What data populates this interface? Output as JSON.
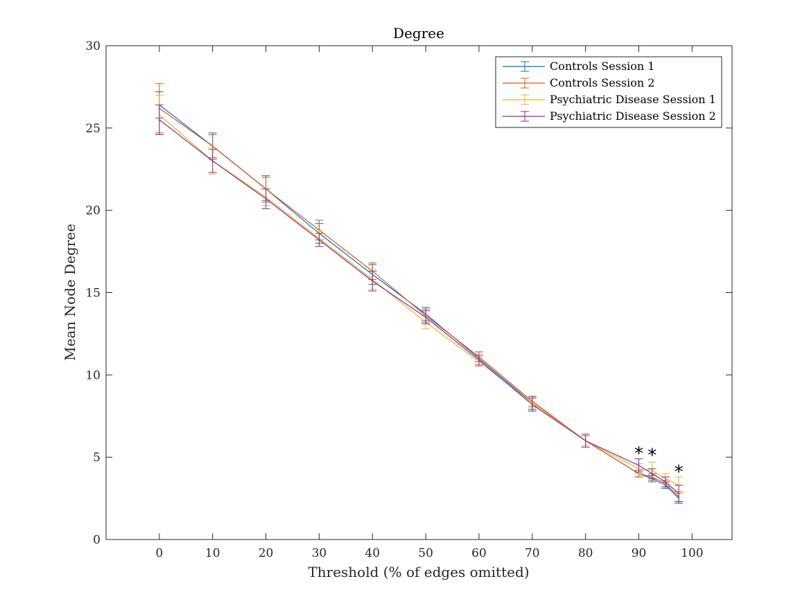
{
  "chart_data": {
    "type": "line",
    "title": "Degree",
    "xlabel": "Threshold (% of edges omitted)",
    "ylabel": "Mean Node Degree",
    "xlim": [
      -10,
      107.5
    ],
    "ylim": [
      0,
      30
    ],
    "xticks": [
      0,
      10,
      20,
      30,
      40,
      50,
      60,
      70,
      80,
      90,
      100
    ],
    "yticks": [
      0,
      5,
      10,
      15,
      20,
      25,
      30
    ],
    "x": [
      0,
      10,
      20,
      30,
      40,
      50,
      60,
      70,
      80,
      90,
      92.5,
      95,
      97.5
    ],
    "series": [
      {
        "name": "Controls Session 1",
        "color": "#0072BD",
        "values": [
          26.4,
          23.9,
          21.3,
          18.6,
          16.1,
          13.7,
          11.0,
          8.3,
          6.0,
          4.0,
          3.7,
          3.3,
          2.5
        ],
        "errors": [
          0.8,
          0.8,
          0.8,
          0.6,
          0.6,
          0.4,
          0.4,
          0.4,
          0.3,
          0.2,
          0.2,
          0.2,
          0.3
        ]
      },
      {
        "name": "Controls Session 2",
        "color": "#D95319",
        "values": [
          26.2,
          23.9,
          21.3,
          18.8,
          16.3,
          13.6,
          11.1,
          8.4,
          6.0,
          4.0,
          3.8,
          3.4,
          2.6
        ],
        "errors": [
          1.5,
          0.7,
          0.7,
          0.6,
          0.5,
          0.4,
          0.3,
          0.3,
          0.3,
          0.2,
          0.2,
          0.2,
          0.3
        ]
      },
      {
        "name": "Psychiatric Disease Session 1",
        "color": "#EDB120",
        "values": [
          25.8,
          23.0,
          20.8,
          18.3,
          15.8,
          13.2,
          10.8,
          8.3,
          6.0,
          4.3,
          4.2,
          3.7,
          3.3
        ],
        "errors": [
          1.2,
          0.8,
          0.5,
          0.5,
          0.6,
          0.4,
          0.3,
          0.3,
          0.3,
          0.3,
          0.5,
          0.3,
          0.5
        ]
      },
      {
        "name": "Psychiatric Disease Session 2",
        "color": "#7E2F8E",
        "values": [
          25.5,
          23.0,
          20.7,
          18.2,
          15.7,
          13.5,
          10.9,
          8.2,
          6.0,
          4.5,
          4.0,
          3.5,
          2.8
        ],
        "errors": [
          0.9,
          0.7,
          0.6,
          0.4,
          0.6,
          0.4,
          0.3,
          0.4,
          0.4,
          0.4,
          0.3,
          0.3,
          0.5
        ]
      }
    ],
    "annotations": [
      {
        "text": "*",
        "x": 90,
        "y": 5.4
      },
      {
        "text": "*",
        "x": 92.5,
        "y": 5.3
      },
      {
        "text": "*",
        "x": 97.5,
        "y": 4.3
      }
    ],
    "legend_position": "top-right",
    "grid": false
  }
}
